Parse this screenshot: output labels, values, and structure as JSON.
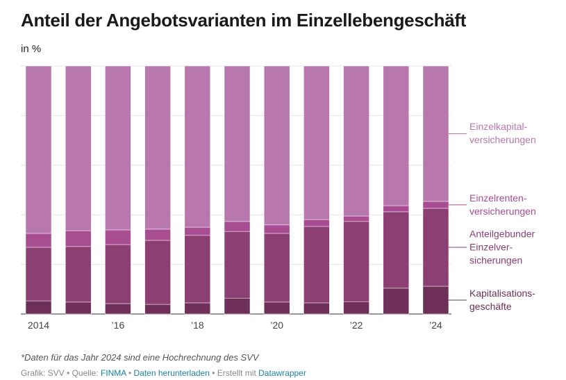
{
  "chart_data": {
    "type": "stacked_bar",
    "title": "Anteil der Angebotsvarianten im Einzellebengeschäft",
    "subtitle": "in %",
    "categories": [
      "2014",
      null,
      "’16",
      null,
      "’18",
      null,
      "’20",
      null,
      "’22",
      null,
      "’24"
    ],
    "series": [
      {
        "name": "Kapitalisations-\ngeschäfte",
        "color": "#6e3059",
        "values": [
          5.3,
          4.8,
          4.2,
          3.9,
          4.5,
          6.4,
          4.8,
          4.5,
          5.0,
          10.4,
          11.2
        ]
      },
      {
        "name": "Anteilgebunder\nEinzelver-\nsicherungen",
        "color": "#8c3f72",
        "values": [
          21.6,
          22.4,
          23.8,
          25.8,
          27.2,
          26.9,
          27.7,
          30.8,
          32.3,
          30.8,
          31.4
        ]
      },
      {
        "name": "Einzelrenten-\nversicherungen",
        "color": "#a84d91",
        "values": [
          5.6,
          6.4,
          5.9,
          4.5,
          3.3,
          4.0,
          3.4,
          2.8,
          2.2,
          2.5,
          2.8
        ]
      },
      {
        "name": "Einzelkapital-\nversicherungen",
        "color": "#b878ae",
        "values": [
          67.5,
          66.4,
          66.1,
          65.8,
          65.0,
          62.7,
          64.1,
          61.9,
          60.5,
          56.3,
          54.6
        ]
      }
    ],
    "ylim": [
      0,
      100
    ],
    "yticks": [
      0,
      20,
      40,
      60,
      80,
      100
    ],
    "grid": true,
    "note": "*Daten für das Jahr 2024 sind eine Hochrechnung des SVV",
    "footer": {
      "credit": "Grafik: SVV",
      "source_label": "Quelle:",
      "source": "FINMA",
      "download": "Daten herunterladen",
      "made_with": "Erstellt mit",
      "tool": "Datawrapper"
    }
  }
}
